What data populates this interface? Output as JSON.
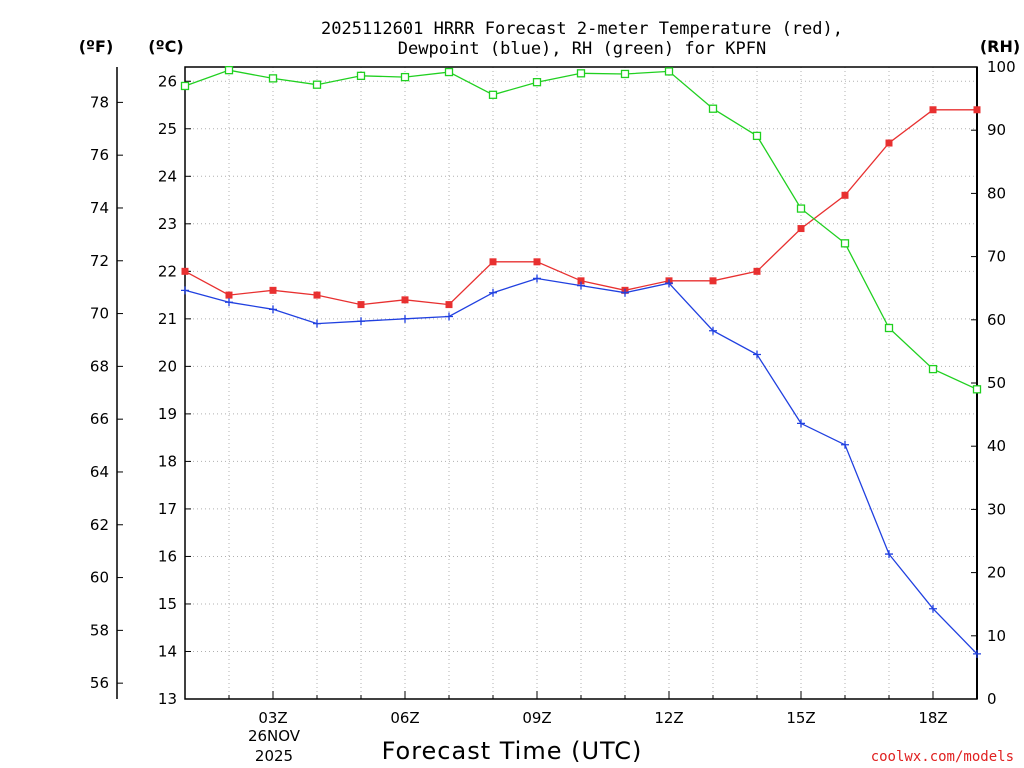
{
  "chart_data": {
    "type": "line",
    "title": "2025112601 HRRR Forecast 2-meter Temperature (red),",
    "subtitle": "Dewpoint (blue), RH (green) for KPFN",
    "xlabel": "Forecast Time (UTC)",
    "date_label": {
      "line1": "26NOV",
      "line2": "2025"
    },
    "credit": "coolwx.com/models",
    "axes": {
      "left_f": {
        "unit_label": "(ºF)",
        "ticks": [
          56,
          58,
          60,
          62,
          64,
          66,
          68,
          70,
          72,
          74,
          76,
          78
        ]
      },
      "left_c": {
        "unit_label": "(ºC)",
        "range": [
          13,
          26.3
        ],
        "ticks": [
          13,
          14,
          15,
          16,
          17,
          18,
          19,
          20,
          21,
          22,
          23,
          24,
          25,
          26
        ]
      },
      "right_rh": {
        "unit_label": "(RH)",
        "range": [
          0,
          100
        ],
        "ticks": [
          0,
          10,
          20,
          30,
          40,
          50,
          60,
          70,
          80,
          90,
          100
        ]
      }
    },
    "x": {
      "range": [
        1,
        19
      ],
      "ticks": [
        3,
        6,
        9,
        12,
        15,
        18
      ],
      "tick_labels": [
        "03Z",
        "06Z",
        "09Z",
        "12Z",
        "15Z",
        "18Z"
      ]
    },
    "grid": true,
    "series": [
      {
        "name": "Temperature",
        "unit": "C",
        "color": "#e83030",
        "marker": "filled-square",
        "x": [
          1,
          2,
          3,
          4,
          5,
          6,
          7,
          8,
          9,
          10,
          11,
          12,
          13,
          14,
          15,
          16,
          17,
          18,
          19
        ],
        "values": [
          22.0,
          21.5,
          21.6,
          21.5,
          21.3,
          21.4,
          21.3,
          22.2,
          22.2,
          21.8,
          21.6,
          21.8,
          21.8,
          22.0,
          22.9,
          23.6,
          24.7,
          25.4,
          25.4
        ]
      },
      {
        "name": "Dewpoint",
        "unit": "C",
        "color": "#2040e0",
        "marker": "plus",
        "x": [
          1,
          2,
          3,
          4,
          5,
          6,
          7,
          8,
          9,
          10,
          11,
          12,
          13,
          14,
          15,
          16,
          17,
          18,
          19
        ],
        "values": [
          21.6,
          21.35,
          21.2,
          20.9,
          20.95,
          21.0,
          21.05,
          21.55,
          21.85,
          21.7,
          21.55,
          21.75,
          20.75,
          20.25,
          18.8,
          18.35,
          16.05,
          14.9,
          13.95
        ]
      },
      {
        "name": "Relative Humidity",
        "unit": "%",
        "color": "#20d020",
        "marker": "open-square",
        "x": [
          1,
          2,
          3,
          4,
          5,
          6,
          7,
          8,
          9,
          10,
          11,
          12,
          13,
          14,
          15,
          16,
          17,
          18,
          19
        ],
        "values": [
          97.0,
          99.5,
          98.2,
          97.2,
          98.6,
          98.4,
          99.2,
          95.6,
          97.6,
          99.0,
          98.9,
          99.3,
          93.4,
          89.1,
          77.6,
          72.1,
          58.7,
          52.2,
          49.0
        ]
      }
    ]
  }
}
